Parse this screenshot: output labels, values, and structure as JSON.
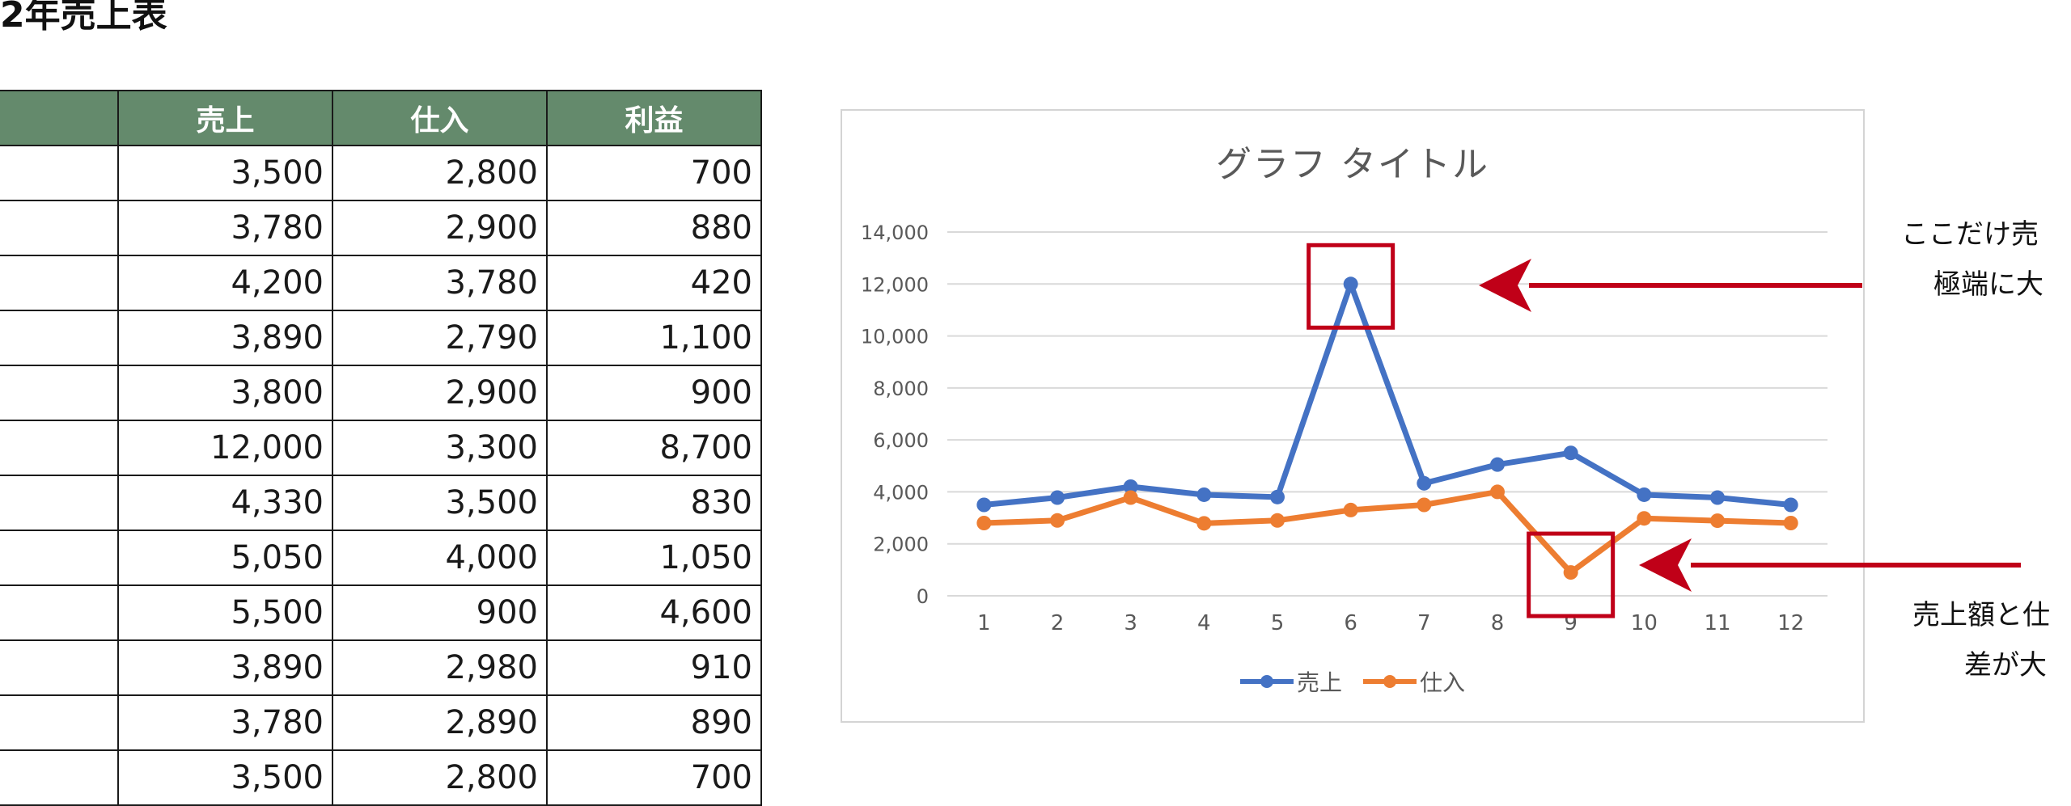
{
  "page": {
    "title": "2年売上表"
  },
  "table": {
    "headers": [
      "",
      "売上",
      "仕入",
      "利益"
    ],
    "rows": [
      [
        "",
        "3,500",
        "2,800",
        "700"
      ],
      [
        "",
        "3,780",
        "2,900",
        "880"
      ],
      [
        "",
        "4,200",
        "3,780",
        "420"
      ],
      [
        "",
        "3,890",
        "2,790",
        "1,100"
      ],
      [
        "",
        "3,800",
        "2,900",
        "900"
      ],
      [
        "",
        "12,000",
        "3,300",
        "8,700"
      ],
      [
        "",
        "4,330",
        "3,500",
        "830"
      ],
      [
        "",
        "5,050",
        "4,000",
        "1,050"
      ],
      [
        "",
        "5,500",
        "900",
        "4,600"
      ],
      [
        "",
        "3,890",
        "2,980",
        "910"
      ],
      [
        "",
        "3,780",
        "2,890",
        "890"
      ],
      [
        "",
        "3,500",
        "2,800",
        "700"
      ]
    ]
  },
  "chart_data": {
    "type": "line",
    "title": "グラフ タイトル",
    "xlabel": "",
    "ylabel": "",
    "categories": [
      "1",
      "2",
      "3",
      "4",
      "5",
      "6",
      "7",
      "8",
      "9",
      "10",
      "11",
      "12"
    ],
    "series": [
      {
        "name": "売上",
        "color": "#4472c4",
        "values": [
          3500,
          3780,
          4200,
          3890,
          3800,
          12000,
          4330,
          5050,
          5500,
          3890,
          3780,
          3500
        ]
      },
      {
        "name": "仕入",
        "color": "#ed7d31",
        "values": [
          2800,
          2900,
          3780,
          2790,
          2900,
          3300,
          3500,
          4000,
          900,
          2980,
          2890,
          2800
        ]
      }
    ],
    "yticks": [
      "0",
      "2,000",
      "4,000",
      "6,000",
      "8,000",
      "10,000",
      "12,000",
      "14,000"
    ],
    "ylim": [
      0,
      14000
    ],
    "grid": true,
    "legend": "bottom",
    "highlight_boxes": [
      {
        "category": "6",
        "series": "売上"
      },
      {
        "category": "9",
        "series": "仕入"
      }
    ]
  },
  "annotations": {
    "top_note": {
      "line1": "ここだけ売",
      "line2": "極端に大"
    },
    "bottom_note": {
      "line1": "売上額と仕",
      "line2": "差が大"
    },
    "accent_color": "#c00018"
  }
}
